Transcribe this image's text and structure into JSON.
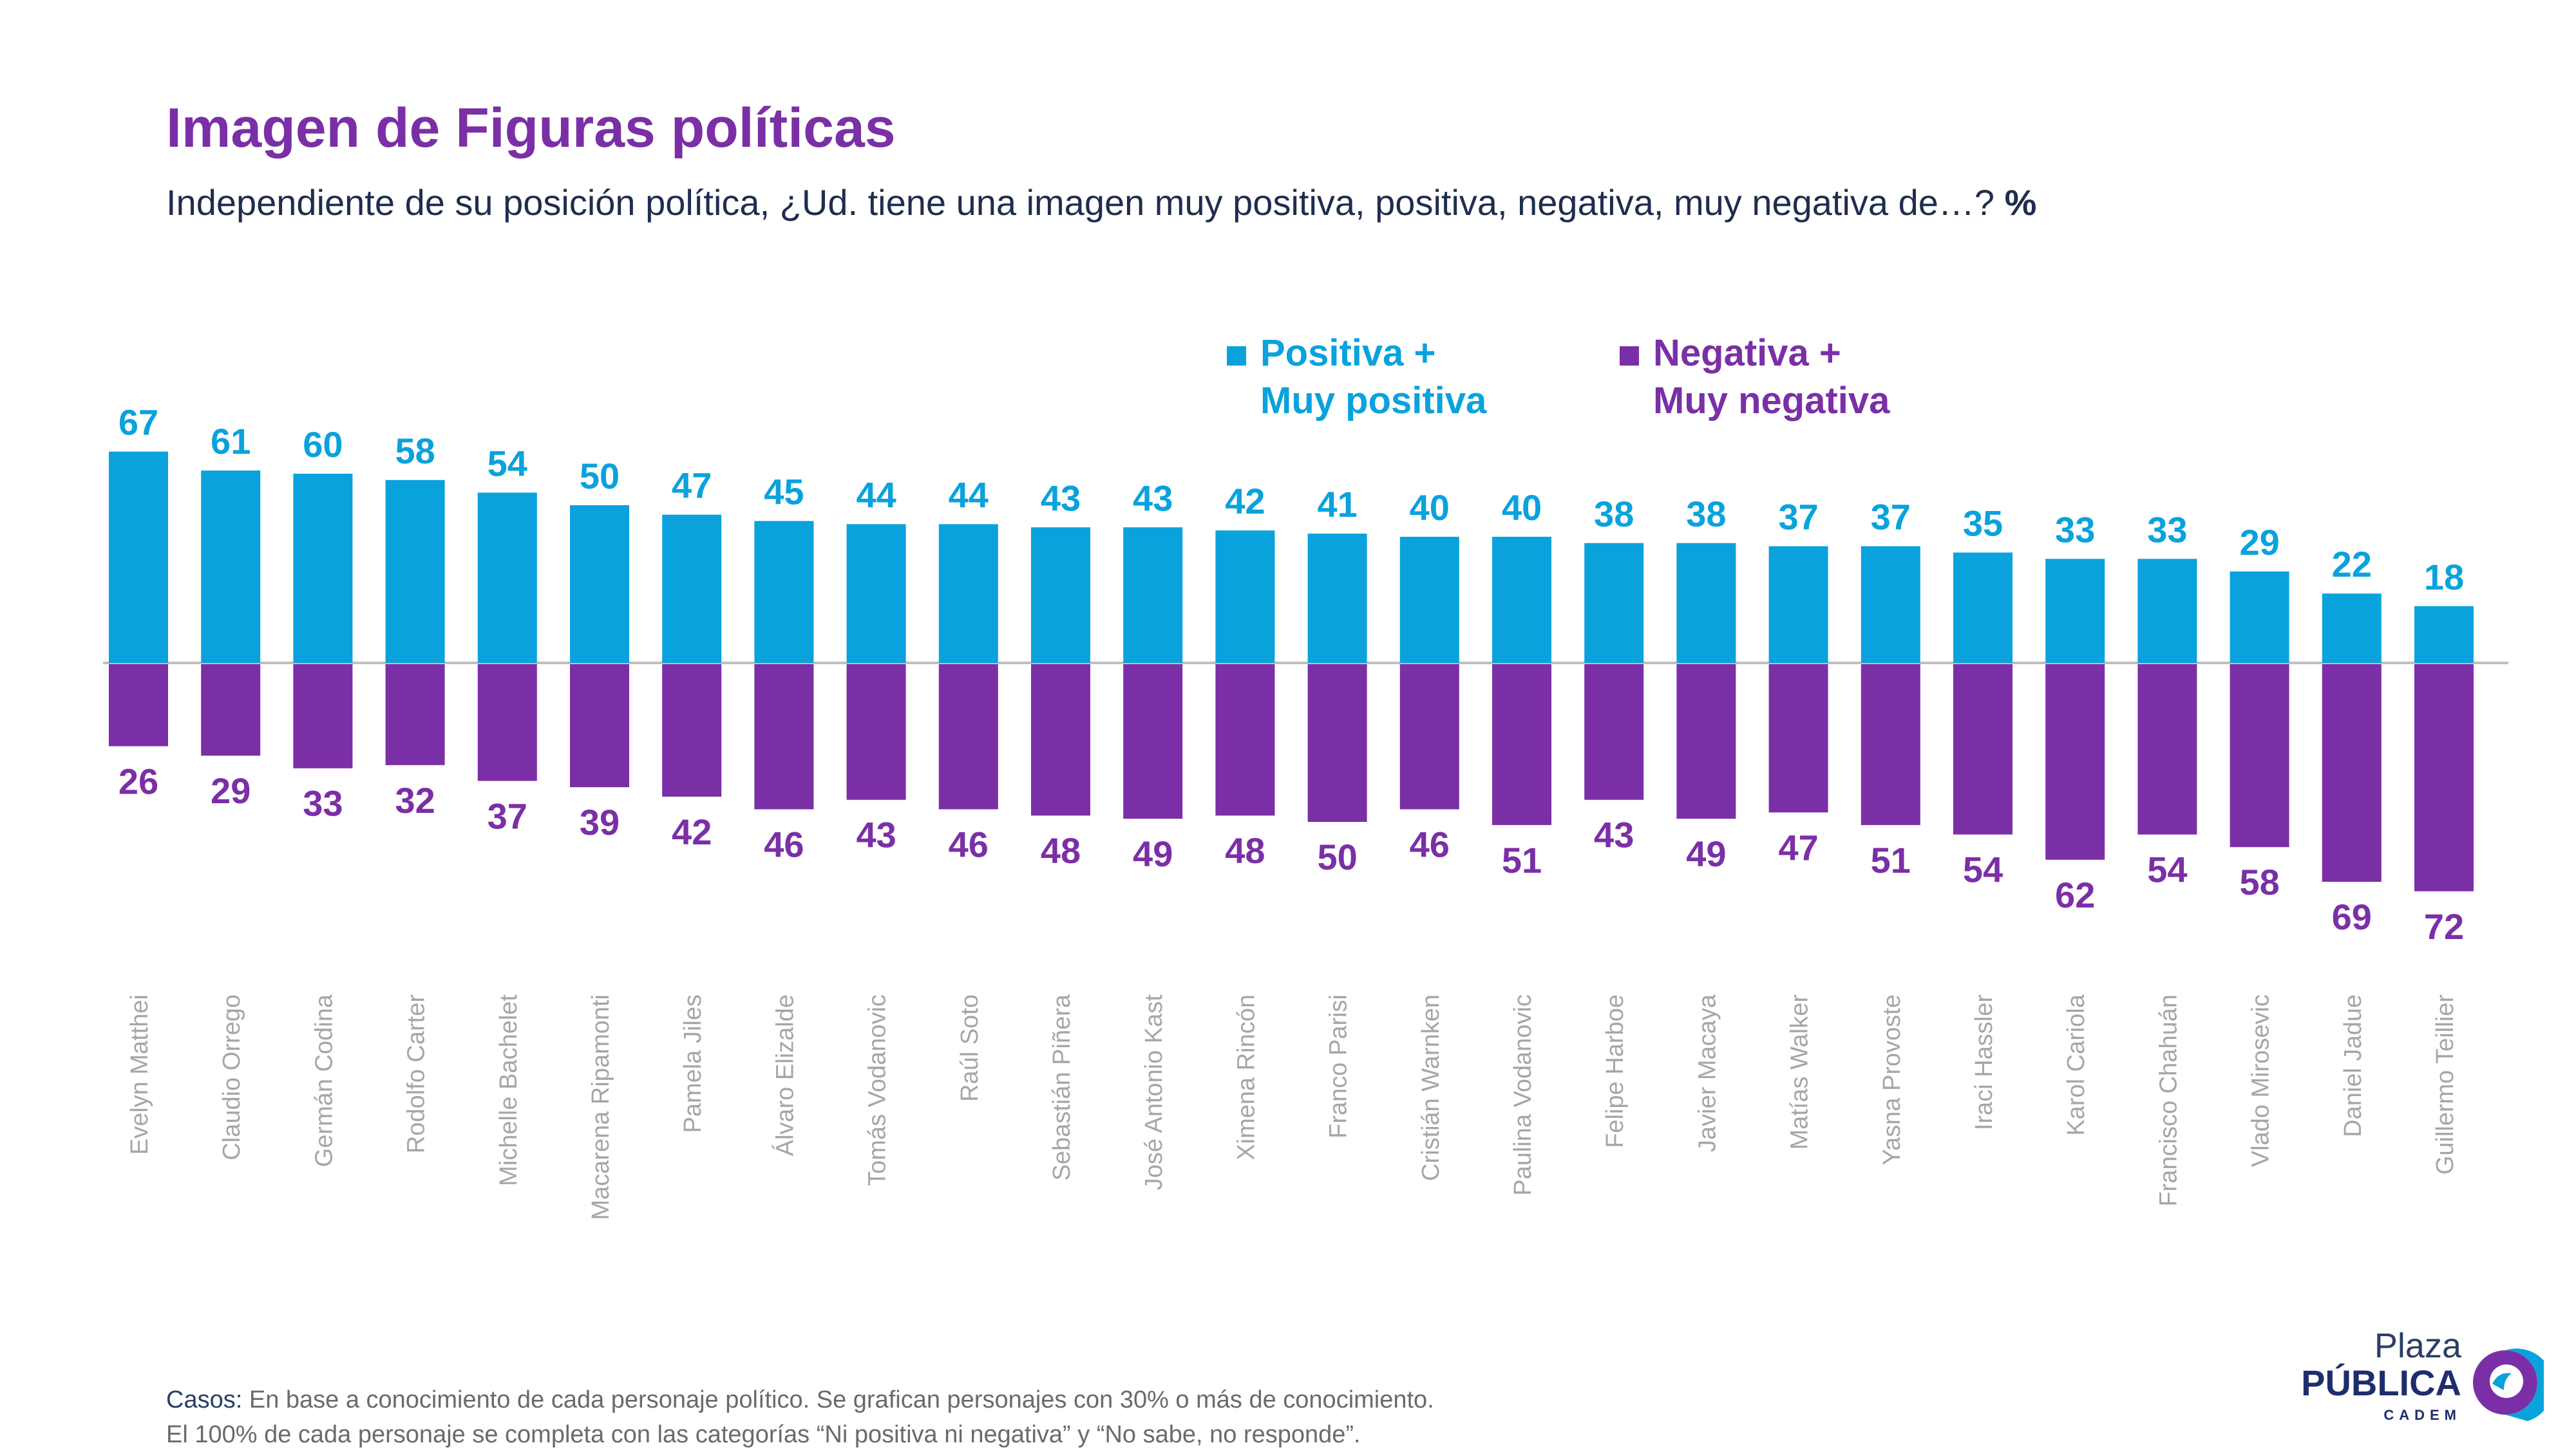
{
  "header": {
    "title": "Imagen de Figuras políticas",
    "subtitle": "Independiente de su posición política, ¿Ud. tiene una imagen muy positiva, positiva, negativa, muy negativa de…?",
    "subtitle_unit": "%"
  },
  "legend": {
    "positive": {
      "line1": "Positiva +",
      "line2": "Muy positiva"
    },
    "negative": {
      "line1": "Negativa +",
      "line2": "Muy negativa"
    }
  },
  "colors": {
    "positive": "#0aa2dc",
    "negative": "#7b2fa6",
    "label_gray": "#a6a6a6",
    "baseline": "#bfbfbf"
  },
  "chart_data": {
    "type": "bar",
    "categories": [
      "Evelyn Matthei",
      "Claudio Orrego",
      "Germán Codina",
      "Rodolfo Carter",
      "Michelle Bachelet",
      "Macarena Ripamonti",
      "Pamela Jiles",
      "Álvaro Elizalde",
      "Tomás Vodanovic",
      "Raúl Soto",
      "Sebastián Piñera",
      "José Antonio Kast",
      "Ximena Rincón",
      "Franco Parisi",
      "Cristián Warnken",
      "Paulina Vodanovic",
      "Felipe Harboe",
      "Javier Macaya",
      "Matías Walker",
      "Yasna Provoste",
      "Iraci Hassler",
      "Karol Cariola",
      "Francisco Chahuán",
      "Vlado Mirosevic",
      "Daniel Jadue",
      "Guillermo Teillier"
    ],
    "series": [
      {
        "name": "Positiva + Muy positiva",
        "values": [
          67,
          61,
          60,
          58,
          54,
          50,
          47,
          45,
          44,
          44,
          43,
          43,
          42,
          41,
          40,
          40,
          38,
          38,
          37,
          37,
          35,
          33,
          33,
          29,
          22,
          18
        ]
      },
      {
        "name": "Negativa + Muy negativa",
        "values": [
          26,
          29,
          33,
          32,
          37,
          39,
          42,
          46,
          43,
          46,
          48,
          49,
          48,
          50,
          46,
          51,
          43,
          49,
          47,
          51,
          54,
          62,
          54,
          58,
          69,
          72
        ]
      }
    ],
    "ylim": [
      -72,
      67
    ]
  },
  "footnote": {
    "label": "Casos:",
    "line1": "En base a conocimiento de cada personaje político. Se grafican personajes con 30% o más de conocimiento.",
    "line2": "El 100% de cada personaje se completa con las categorías “Ni positiva ni negativa” y “No sabe, no responde”."
  },
  "logo": {
    "line1": "Plaza",
    "line2": "PÚBLICA",
    "line3": "CADEM"
  }
}
